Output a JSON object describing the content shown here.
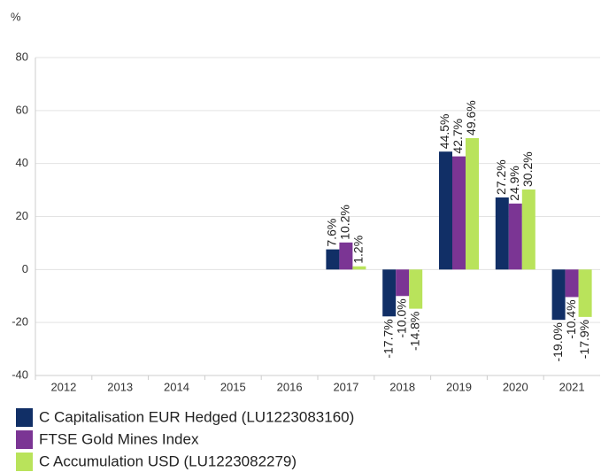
{
  "chart_data": {
    "type": "bar",
    "y_label": "%",
    "categories": [
      "2012",
      "2013",
      "2014",
      "2015",
      "2016",
      "2017",
      "2018",
      "2019",
      "2020",
      "2021"
    ],
    "series": [
      {
        "name": "C Capitalisation EUR Hedged (LU1223083160)",
        "color": "#112f66",
        "values": [
          null,
          null,
          null,
          null,
          null,
          7.6,
          -17.7,
          44.5,
          27.2,
          -19.0
        ],
        "value_labels": [
          null,
          null,
          null,
          null,
          null,
          "7.6%",
          "-17.7%",
          "44.5%",
          "27.2%",
          "-19.0%"
        ]
      },
      {
        "name": "FTSE Gold Mines Index",
        "color": "#7b3594",
        "values": [
          null,
          null,
          null,
          null,
          null,
          10.2,
          -10.0,
          42.7,
          24.9,
          -10.4
        ],
        "value_labels": [
          null,
          null,
          null,
          null,
          null,
          "10.2%",
          "-10.0%",
          "42.7%",
          "24.9%",
          "-10.4%"
        ]
      },
      {
        "name": "C Accumulation USD (LU1223082279)",
        "color": "#b9e35b",
        "values": [
          null,
          null,
          null,
          null,
          null,
          1.2,
          -14.8,
          49.6,
          30.2,
          -17.9
        ],
        "value_labels": [
          null,
          null,
          null,
          null,
          null,
          "1.2%",
          "-14.8%",
          "49.6%",
          "30.2%",
          "-17.9%"
        ]
      }
    ],
    "ylim": [
      -40,
      80
    ],
    "yticks": [
      -40,
      -20,
      0,
      20,
      40,
      60,
      80
    ],
    "grid": true,
    "legend": "bottom"
  }
}
